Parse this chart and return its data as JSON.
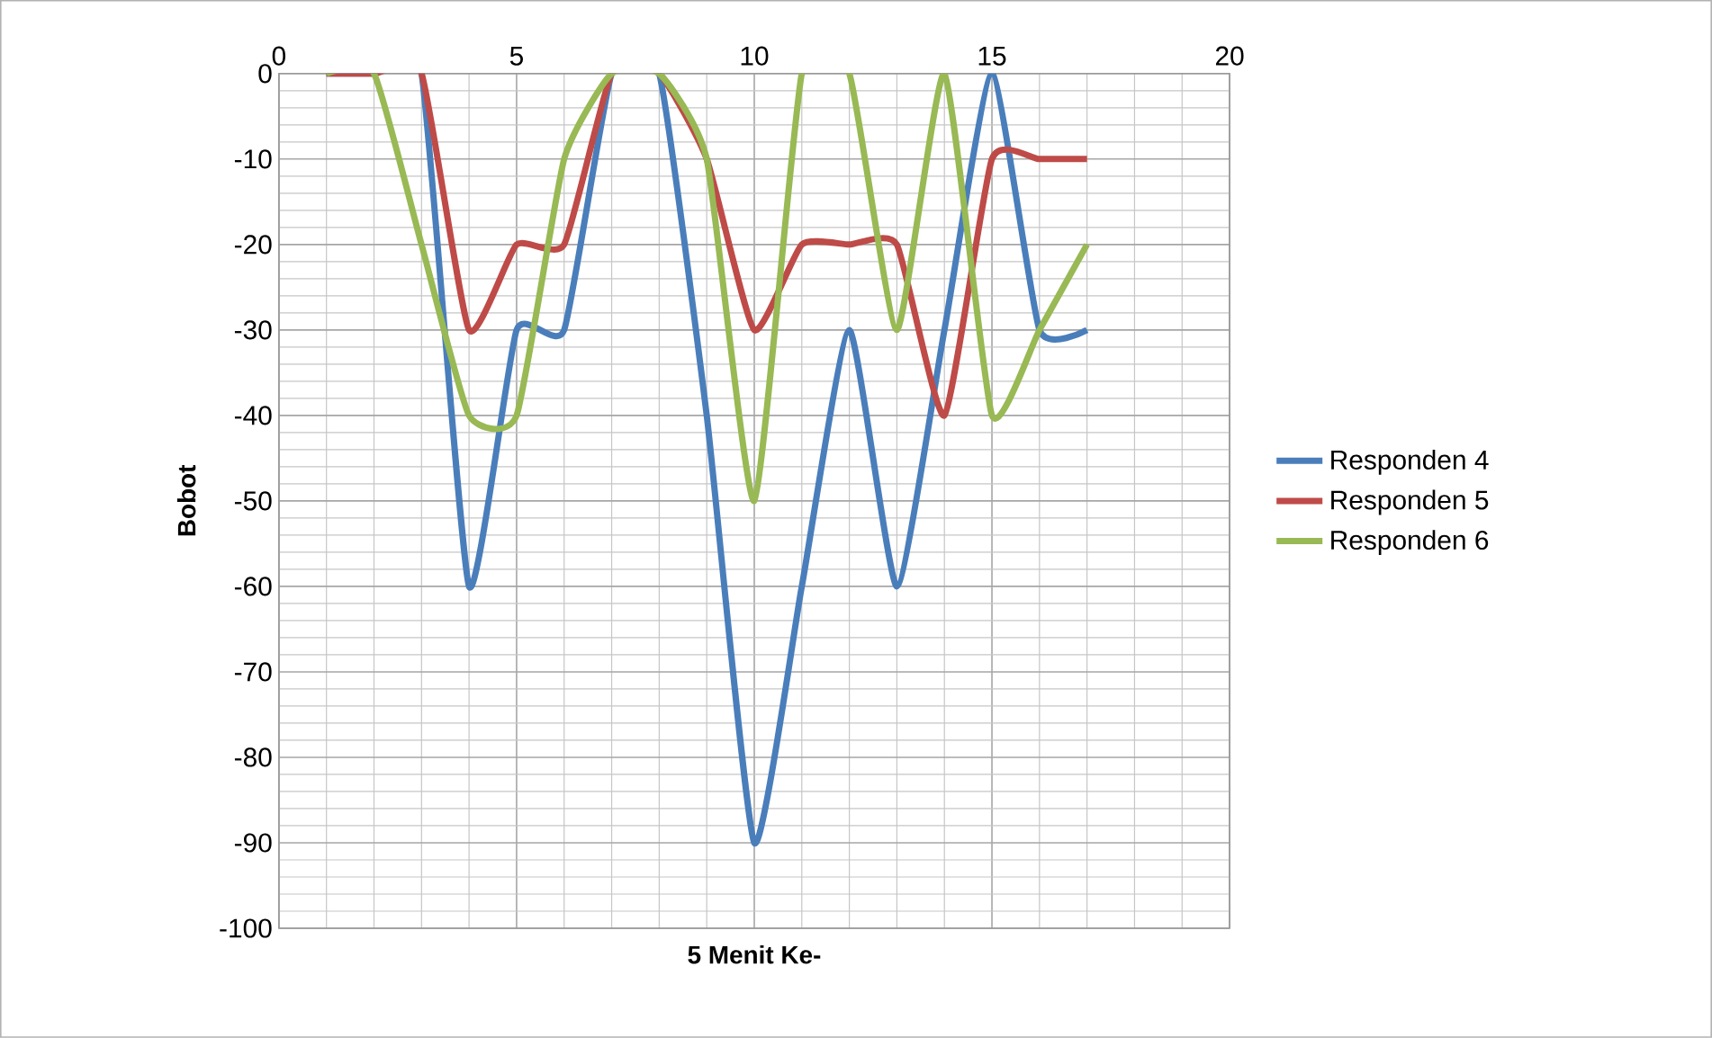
{
  "chart_data": {
    "type": "line",
    "xlabel": "5 Menit Ke-",
    "ylabel": "Bobot",
    "x": [
      1,
      2,
      3,
      4,
      5,
      6,
      7,
      8,
      9,
      10,
      11,
      12,
      13,
      14,
      15,
      16,
      17
    ],
    "series": [
      {
        "name": "Responden 4",
        "color": "#4a7ebb",
        "values": [
          0,
          0,
          0,
          -60,
          -30,
          -30,
          0,
          0,
          -40,
          -90,
          -60,
          -30,
          -60,
          -30,
          0,
          -30,
          -30
        ]
      },
      {
        "name": "Responden 5",
        "color": "#be4b48",
        "values": [
          0,
          0,
          0,
          -30,
          -20,
          -20,
          0,
          0,
          -10,
          -30,
          -20,
          -20,
          -20,
          -40,
          -10,
          -10,
          -10
        ]
      },
      {
        "name": "Responden 6",
        "color": "#98b954",
        "values": [
          0,
          0,
          -20,
          -40,
          -40,
          -10,
          0,
          0,
          -10,
          -50,
          0,
          0,
          -30,
          0,
          -40,
          -30,
          -20
        ]
      }
    ],
    "xlim": [
      0,
      20
    ],
    "ylim": [
      -100,
      0
    ],
    "xticks": [
      0,
      5,
      10,
      15,
      20
    ],
    "yticks": [
      0,
      -10,
      -20,
      -30,
      -40,
      -50,
      -60,
      -70,
      -80,
      -90,
      -100
    ],
    "grid": true,
    "legend": "right",
    "marker": "none",
    "line_style": "solid"
  }
}
